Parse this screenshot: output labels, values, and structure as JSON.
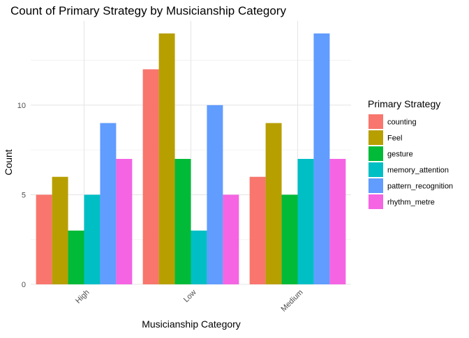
{
  "chart_data": {
    "type": "bar",
    "title": "Count of Primary Strategy by Musicianship Category",
    "xlabel": "Musicianship Category",
    "ylabel": "Count",
    "categories": [
      "High",
      "Low",
      "Medium"
    ],
    "yticks": [
      0,
      5,
      10
    ],
    "ylim": [
      0,
      14.7
    ],
    "grid": true,
    "legend": {
      "title": "Primary Strategy",
      "position": "right"
    },
    "series": [
      {
        "name": "counting",
        "color": "#F8766D",
        "values": [
          5,
          12,
          6
        ]
      },
      {
        "name": "Feel",
        "color": "#B79F00",
        "values": [
          6,
          14,
          9
        ]
      },
      {
        "name": "gesture",
        "color": "#00BA38",
        "values": [
          3,
          7,
          5
        ]
      },
      {
        "name": "memory_attention",
        "color": "#00BFC4",
        "values": [
          5,
          3,
          7
        ]
      },
      {
        "name": "pattern_recognition",
        "color": "#619CFF",
        "values": [
          9,
          10,
          14
        ]
      },
      {
        "name": "rhythm_metre",
        "color": "#F564E3",
        "values": [
          7,
          5,
          7
        ]
      }
    ]
  }
}
